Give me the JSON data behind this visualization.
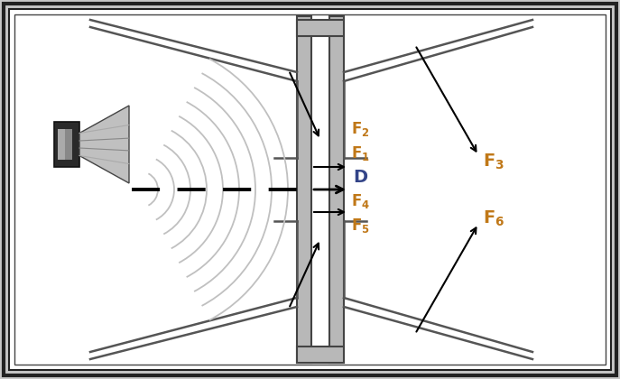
{
  "bg_outer": "#c8c8c8",
  "bg_inner": "#ffffff",
  "border_outer": "#222222",
  "border_inner": "#333333",
  "wall_fill": "#b8b8b8",
  "wall_edge": "#444444",
  "flange_color": "#555555",
  "wave_color": "#c0c0c0",
  "arrow_color": "#111111",
  "label_F_color": "#c07818",
  "label_D_color": "#334488",
  "fig_width": 6.87,
  "fig_height": 4.2,
  "dpi": 100,
  "xlim": [
    0,
    687
  ],
  "ylim": [
    0,
    420
  ]
}
